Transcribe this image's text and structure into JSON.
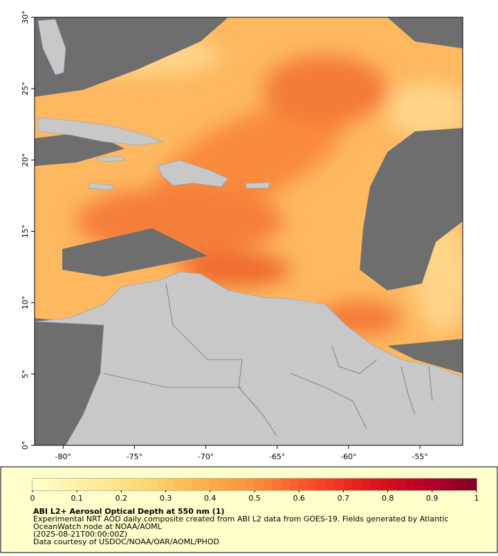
{
  "map": {
    "xlim": [
      -82,
      -52
    ],
    "ylim": [
      0,
      30
    ],
    "xticks": [
      {
        "value": -80,
        "label": "-80°"
      },
      {
        "value": -75,
        "label": "-75°"
      },
      {
        "value": -70,
        "label": "-70°"
      },
      {
        "value": -65,
        "label": "-65°"
      },
      {
        "value": -60,
        "label": "-60°"
      },
      {
        "value": -55,
        "label": "-55°"
      }
    ],
    "yticks": [
      {
        "value": 0,
        "label": "0°"
      },
      {
        "value": 5,
        "label": "5°"
      },
      {
        "value": 10,
        "label": "10°"
      },
      {
        "value": 15,
        "label": "15°"
      },
      {
        "value": 20,
        "label": "20°"
      },
      {
        "value": 25,
        "label": "25°"
      },
      {
        "value": 30,
        "label": "30°"
      }
    ]
  },
  "colorbar": {
    "range": [
      0,
      1
    ],
    "ticks": [
      0,
      0.1,
      0.2,
      0.3,
      0.4,
      0.5,
      0.6,
      0.7,
      0.8,
      0.9,
      1
    ],
    "colors": [
      "#ffffcc",
      "#ffeda0",
      "#fed976",
      "#feb24c",
      "#fd8d3c",
      "#fc4e2a",
      "#e31a1c",
      "#bd0026",
      "#800026"
    ]
  },
  "caption": {
    "title": "ABI L2+ Aerosol Optical Depth at 550 nm (1)",
    "lines": [
      "Experimental NRT AOD daily composite created from ABI L2 data from GOES-19. Fields generated by Atlantic",
      "OceanWatch node at NOAA/AOML",
      "(2025-08-21T00:00:00Z)",
      "Data courtesy of USDOC/NOAA/OAR/AOML/PHOD"
    ]
  }
}
